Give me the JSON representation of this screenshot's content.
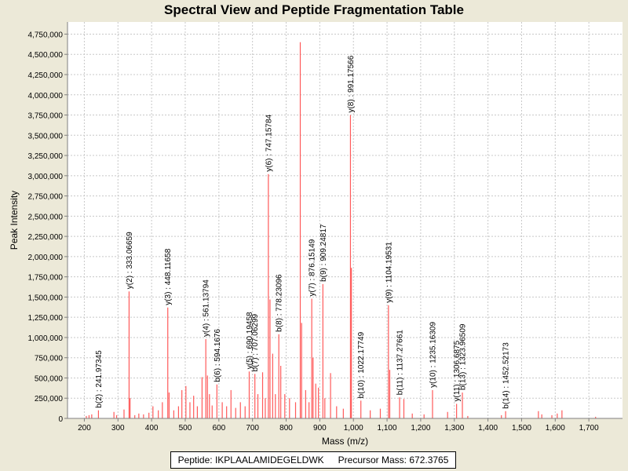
{
  "chart_data": {
    "type": "bar",
    "title": "Spectral View and Peptide Fragmentation Table",
    "xlabel": "Mass (m/z)",
    "ylabel": "Peak Intensity",
    "xlim": [
      150,
      1800
    ],
    "ylim": [
      0,
      4900000
    ],
    "x_ticks": [
      200,
      300,
      400,
      500,
      600,
      700,
      800,
      900,
      1000,
      1100,
      1200,
      1300,
      1400,
      1500,
      1600,
      1700
    ],
    "x_tick_labels": [
      "200",
      "300",
      "400",
      "500",
      "600",
      "700",
      "800",
      "900",
      "1,000",
      "1,100",
      "1,200",
      "1,300",
      "1,400",
      "1,500",
      "1,600",
      "1,700"
    ],
    "y_ticks": [
      0,
      250000,
      500000,
      750000,
      1000000,
      1250000,
      1500000,
      1750000,
      2000000,
      2250000,
      2500000,
      2750000,
      3000000,
      3250000,
      3500000,
      3750000,
      4000000,
      4250000,
      4500000,
      4750000
    ],
    "y_tick_labels": [
      "0",
      "250,000",
      "500,000",
      "750,000",
      "1,000,000",
      "1,250,000",
      "1,500,000",
      "1,750,000",
      "2,000,000",
      "2,250,000",
      "2,500,000",
      "2,750,000",
      "3,000,000",
      "3,250,000",
      "3,500,000",
      "3,750,000",
      "4,000,000",
      "4,250,000",
      "4,500,000",
      "4,750,000"
    ],
    "peaks": [
      {
        "mz": 206,
        "intensity": 30000
      },
      {
        "mz": 214,
        "intensity": 40000
      },
      {
        "mz": 222,
        "intensity": 50000
      },
      {
        "mz": 241.97345,
        "intensity": 100000,
        "label": "b(2) : 241.97345"
      },
      {
        "mz": 288,
        "intensity": 80000
      },
      {
        "mz": 296,
        "intensity": 40000
      },
      {
        "mz": 318,
        "intensity": 110000
      },
      {
        "mz": 333.06659,
        "intensity": 1570000,
        "label": "y(2) : 333.06659"
      },
      {
        "mz": 336,
        "intensity": 250000
      },
      {
        "mz": 350,
        "intensity": 40000
      },
      {
        "mz": 362,
        "intensity": 60000
      },
      {
        "mz": 376,
        "intensity": 50000
      },
      {
        "mz": 392,
        "intensity": 70000
      },
      {
        "mz": 404,
        "intensity": 150000
      },
      {
        "mz": 420,
        "intensity": 100000
      },
      {
        "mz": 432,
        "intensity": 200000
      },
      {
        "mz": 448.11658,
        "intensity": 1370000,
        "label": "y(3) : 448.11658"
      },
      {
        "mz": 452,
        "intensity": 320000
      },
      {
        "mz": 466,
        "intensity": 100000
      },
      {
        "mz": 480,
        "intensity": 150000
      },
      {
        "mz": 490,
        "intensity": 350000
      },
      {
        "mz": 502,
        "intensity": 400000
      },
      {
        "mz": 514,
        "intensity": 200000
      },
      {
        "mz": 525,
        "intensity": 280000
      },
      {
        "mz": 536,
        "intensity": 150000
      },
      {
        "mz": 550,
        "intensity": 510000
      },
      {
        "mz": 561.13794,
        "intensity": 980000,
        "label": "y(4) : 561.13794"
      },
      {
        "mz": 566,
        "intensity": 530000
      },
      {
        "mz": 572,
        "intensity": 300000
      },
      {
        "mz": 580,
        "intensity": 160000
      },
      {
        "mz": 594.1676,
        "intensity": 420000,
        "label": "b(6) : 594.1676"
      },
      {
        "mz": 610,
        "intensity": 200000
      },
      {
        "mz": 623,
        "intensity": 150000
      },
      {
        "mz": 636,
        "intensity": 350000
      },
      {
        "mz": 650,
        "intensity": 130000
      },
      {
        "mz": 664,
        "intensity": 200000
      },
      {
        "mz": 678,
        "intensity": 150000
      },
      {
        "mz": 690.19458,
        "intensity": 580000,
        "label": "y(5) : 690.19458"
      },
      {
        "mz": 707.06299,
        "intensity": 550000,
        "label": "b(7) : 707.06299"
      },
      {
        "mz": 716,
        "intensity": 300000
      },
      {
        "mz": 730,
        "intensity": 570000
      },
      {
        "mz": 738,
        "intensity": 250000
      },
      {
        "mz": 747.15784,
        "intensity": 3020000,
        "label": "y(6) : 747.15784"
      },
      {
        "mz": 752,
        "intensity": 1470000
      },
      {
        "mz": 760,
        "intensity": 800000
      },
      {
        "mz": 768,
        "intensity": 300000
      },
      {
        "mz": 778.23096,
        "intensity": 1040000,
        "label": "b(8) : 778.23096"
      },
      {
        "mz": 784,
        "intensity": 650000
      },
      {
        "mz": 796,
        "intensity": 300000
      },
      {
        "mz": 810,
        "intensity": 250000
      },
      {
        "mz": 828,
        "intensity": 200000
      },
      {
        "mz": 842,
        "intensity": 4650000
      },
      {
        "mz": 846,
        "intensity": 1180000
      },
      {
        "mz": 858,
        "intensity": 350000
      },
      {
        "mz": 868,
        "intensity": 200000
      },
      {
        "mz": 876.15149,
        "intensity": 1480000,
        "label": "y(7) : 876.15149"
      },
      {
        "mz": 880,
        "intensity": 750000
      },
      {
        "mz": 888,
        "intensity": 430000
      },
      {
        "mz": 896,
        "intensity": 380000
      },
      {
        "mz": 909.24817,
        "intensity": 1660000,
        "label": "b(9) : 909.24817"
      },
      {
        "mz": 915,
        "intensity": 250000
      },
      {
        "mz": 932,
        "intensity": 560000
      },
      {
        "mz": 950,
        "intensity": 150000
      },
      {
        "mz": 970,
        "intensity": 120000
      },
      {
        "mz": 991.17566,
        "intensity": 3750000,
        "label": "y(8) : 991.17566"
      },
      {
        "mz": 994,
        "intensity": 1860000
      },
      {
        "mz": 1022.17749,
        "intensity": 220000,
        "label": "b(10) : 1022.17749"
      },
      {
        "mz": 1050,
        "intensity": 100000
      },
      {
        "mz": 1080,
        "intensity": 120000
      },
      {
        "mz": 1104.19531,
        "intensity": 1400000,
        "label": "y(9) : 1104.19531"
      },
      {
        "mz": 1108,
        "intensity": 600000
      },
      {
        "mz": 1137.27661,
        "intensity": 260000,
        "label": "b(11) : 1137.27661"
      },
      {
        "mz": 1150,
        "intensity": 240000
      },
      {
        "mz": 1175,
        "intensity": 60000
      },
      {
        "mz": 1210,
        "intensity": 50000
      },
      {
        "mz": 1235.16309,
        "intensity": 350000,
        "label": "y(10) : 1235.16309"
      },
      {
        "mz": 1280,
        "intensity": 80000
      },
      {
        "mz": 1306.6875,
        "intensity": 180000,
        "label": "y(11) : 1306.6875"
      },
      {
        "mz": 1323.96509,
        "intensity": 320000,
        "label": "b(13) : 1323.96509"
      },
      {
        "mz": 1340,
        "intensity": 30000
      },
      {
        "mz": 1440,
        "intensity": 40000
      },
      {
        "mz": 1452.52173,
        "intensity": 90000,
        "label": "b(14) : 1452.52173"
      },
      {
        "mz": 1550,
        "intensity": 90000
      },
      {
        "mz": 1560,
        "intensity": 50000
      },
      {
        "mz": 1590,
        "intensity": 40000
      },
      {
        "mz": 1606,
        "intensity": 60000
      },
      {
        "mz": 1620,
        "intensity": 100000
      },
      {
        "mz": 1720,
        "intensity": 20000
      }
    ]
  },
  "legend": {
    "peptide": "Peptide: IKPLAALAMIDEGELDWK",
    "precursor": "Precursor Mass: 672.3765"
  },
  "colors": {
    "peak": "#ff5a5a",
    "background": "#ece9d8",
    "plot_background": "#ffffff",
    "grid": "#c8c8c8"
  }
}
